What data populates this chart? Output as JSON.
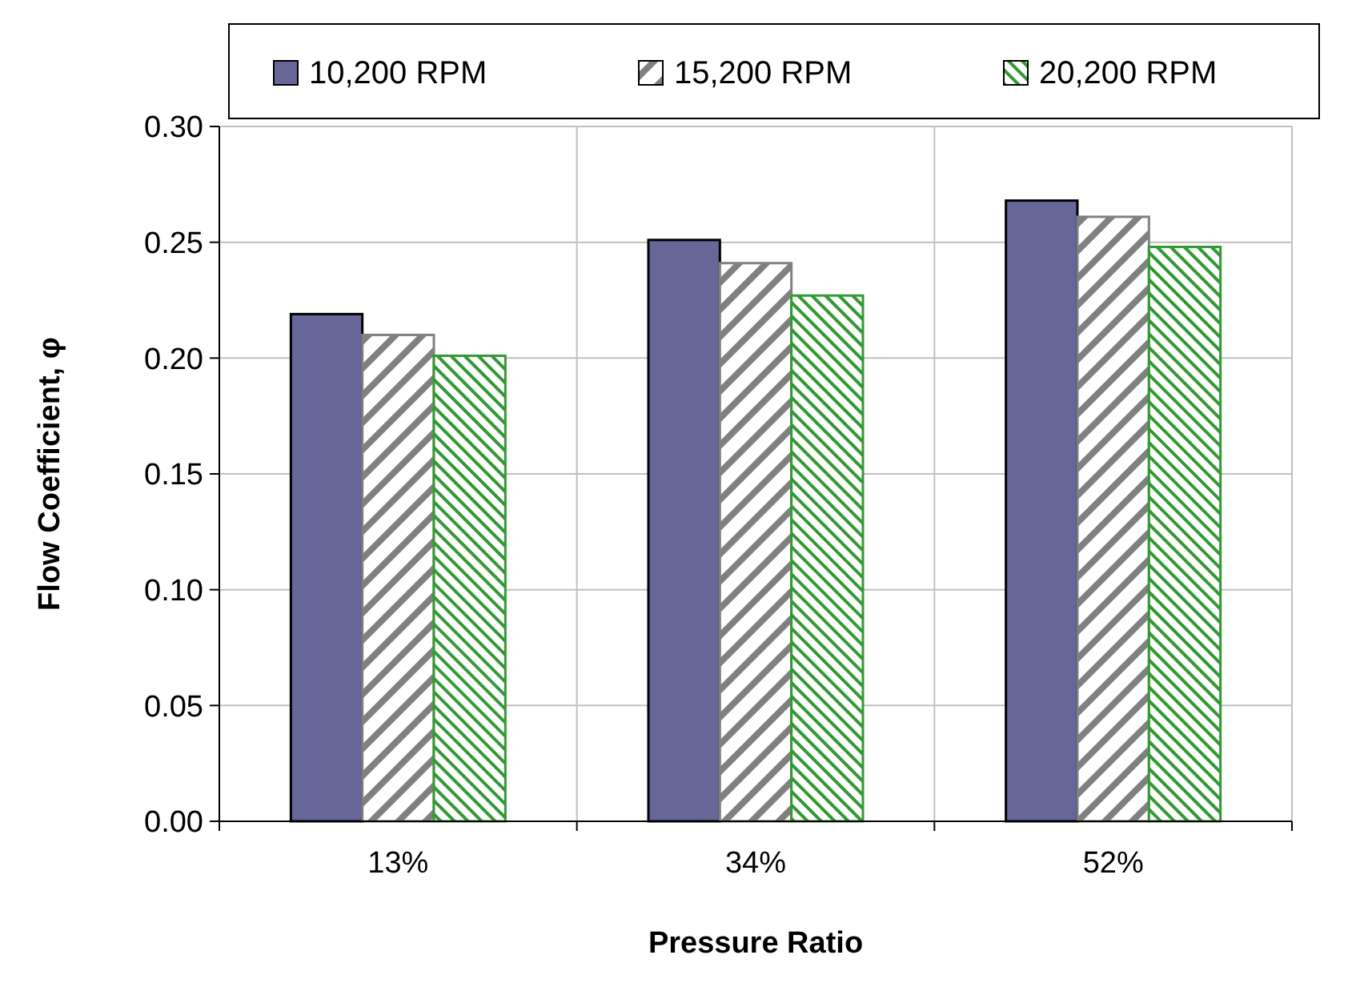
{
  "chart_data": {
    "type": "bar",
    "xlabel": "Pressure Ratio",
    "ylabel": "Flow Coefficient, φ",
    "categories": [
      "13%",
      "34%",
      "52%"
    ],
    "series": [
      {
        "name": "10,200 RPM",
        "color": "#666699",
        "values": [
          0.219,
          0.251,
          0.268
        ]
      },
      {
        "name": "15,200 RPM",
        "color": "#808080",
        "values": [
          0.21,
          0.241,
          0.261
        ]
      },
      {
        "name": "20,200 RPM",
        "color": "#339933",
        "values": [
          0.201,
          0.227,
          0.248
        ]
      }
    ],
    "ylim": [
      0,
      0.3
    ],
    "yticks": [
      {
        "value": 0,
        "label": "0.00"
      },
      {
        "value": 0.05,
        "label": "0.05"
      },
      {
        "value": 0.1,
        "label": "0.10"
      },
      {
        "value": 0.15,
        "label": "0.15"
      },
      {
        "value": 0.2,
        "label": "0.20"
      },
      {
        "value": 0.25,
        "label": "0.25"
      },
      {
        "value": 0.3,
        "label": "0.30"
      }
    ],
    "grid": true,
    "legend": "top"
  }
}
